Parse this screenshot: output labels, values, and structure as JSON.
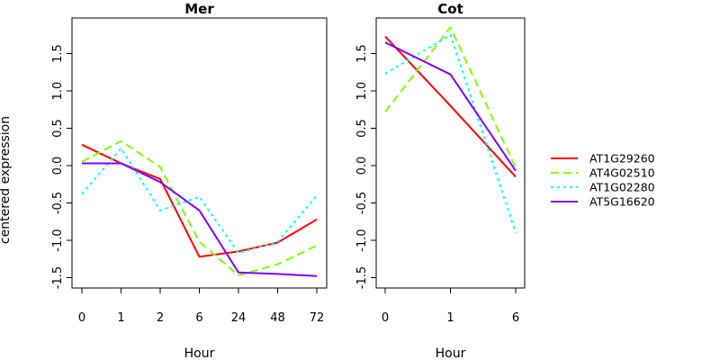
{
  "chart_data": [
    {
      "type": "line",
      "title": "Mer",
      "xlabel": "Hour",
      "ylabel": "centered expression",
      "x": [
        "0",
        "1",
        "2",
        "6",
        "24",
        "48",
        "72"
      ],
      "ylim": [
        -1.6,
        1.95
      ],
      "yticks": [
        "-1.5",
        "-1.0",
        "-0.5",
        "0.0",
        "0.5",
        "1.0",
        "1.5"
      ],
      "ytick_values": [
        -1.5,
        -1.0,
        -0.5,
        0.0,
        0.5,
        1.0,
        1.5
      ],
      "grid": false,
      "series": [
        {
          "name": "AT1G29260",
          "color": "#ff0000",
          "dash": "solid",
          "values": [
            0.28,
            0.03,
            -0.18,
            -1.22,
            -1.15,
            -1.03,
            -0.72
          ]
        },
        {
          "name": "AT4G02510",
          "color": "#80ff00",
          "dash": "dashed",
          "values": [
            0.05,
            0.33,
            -0.02,
            -1.02,
            -1.47,
            -1.32,
            -1.07
          ]
        },
        {
          "name": "AT1G02280",
          "color": "#00ffff",
          "dash": "dotted",
          "values": [
            -0.38,
            0.23,
            -0.6,
            -0.42,
            -1.17,
            -1.02,
            -0.4
          ]
        },
        {
          "name": "AT5G16620",
          "color": "#8000ff",
          "dash": "solid",
          "values": [
            0.03,
            0.03,
            -0.22,
            -0.6,
            -1.43,
            -1.45,
            -1.48
          ]
        }
      ]
    },
    {
      "type": "line",
      "title": "Cot",
      "xlabel": "Hour",
      "ylabel": "",
      "x": [
        "0",
        "1",
        "6"
      ],
      "ylim": [
        -1.6,
        1.95
      ],
      "yticks": [
        "-1.5",
        "-1.0",
        "-0.5",
        "0.0",
        "0.5",
        "1.0",
        "1.5"
      ],
      "ytick_values": [
        -1.5,
        -1.0,
        -0.5,
        0.0,
        0.5,
        1.0,
        1.5
      ],
      "grid": false,
      "series": [
        {
          "name": "AT1G29260",
          "color": "#ff0000",
          "dash": "solid",
          "values": [
            1.73,
            0.8,
            -0.15
          ]
        },
        {
          "name": "AT4G02510",
          "color": "#80ff00",
          "dash": "dashed",
          "values": [
            0.72,
            1.85,
            -0.03
          ]
        },
        {
          "name": "AT1G02280",
          "color": "#00ffff",
          "dash": "dotted",
          "values": [
            1.23,
            1.75,
            -0.9
          ]
        },
        {
          "name": "AT5G16620",
          "color": "#8000ff",
          "dash": "solid",
          "values": [
            1.65,
            1.22,
            -0.07
          ]
        }
      ]
    }
  ],
  "legend": {
    "placement": "right",
    "entries": [
      {
        "label": "AT1G29260",
        "color": "#ff0000",
        "dash": "solid"
      },
      {
        "label": "AT4G02510",
        "color": "#80ff00",
        "dash": "dashed"
      },
      {
        "label": "AT1G02280",
        "color": "#00ffff",
        "dash": "dotted"
      },
      {
        "label": "AT5G16620",
        "color": "#8000ff",
        "dash": "solid"
      }
    ]
  }
}
